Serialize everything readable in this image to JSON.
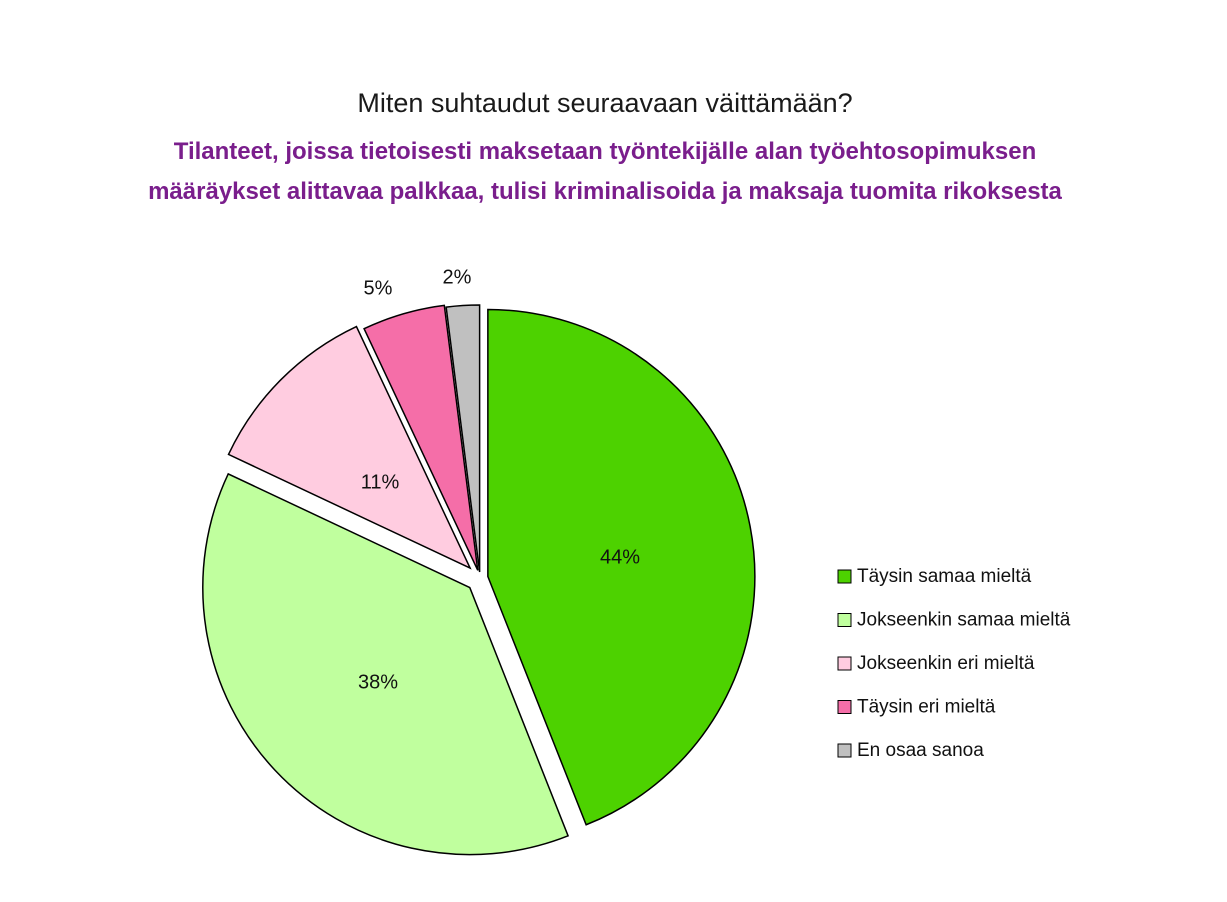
{
  "chart_data": {
    "type": "pie",
    "title": "Miten suhtaudut seuraavaan väittämään?",
    "subtitle_line1": "Tilanteet, joissa tietoisesti maksetaan työntekijälle alan työehtosopimuksen",
    "subtitle_line2": "määräykset alittavaa palkkaa, tulisi kriminalisoida ja maksaja tuomita rikoksesta",
    "categories": [
      "Täysin samaa mieltä",
      "Jokseenkin samaa mieltä",
      "Jokseenkin eri mieltä",
      "Täysin eri mieltä",
      "En osaa sanoa"
    ],
    "values": [
      44,
      38,
      11,
      5,
      2
    ],
    "labels": [
      "44%",
      "38%",
      "11%",
      "5%",
      "2%"
    ],
    "colors": [
      "#4dd200",
      "#c0ff9e",
      "#ffcce0",
      "#f56ea8",
      "#c0c0c0"
    ],
    "legend_position": "right"
  }
}
